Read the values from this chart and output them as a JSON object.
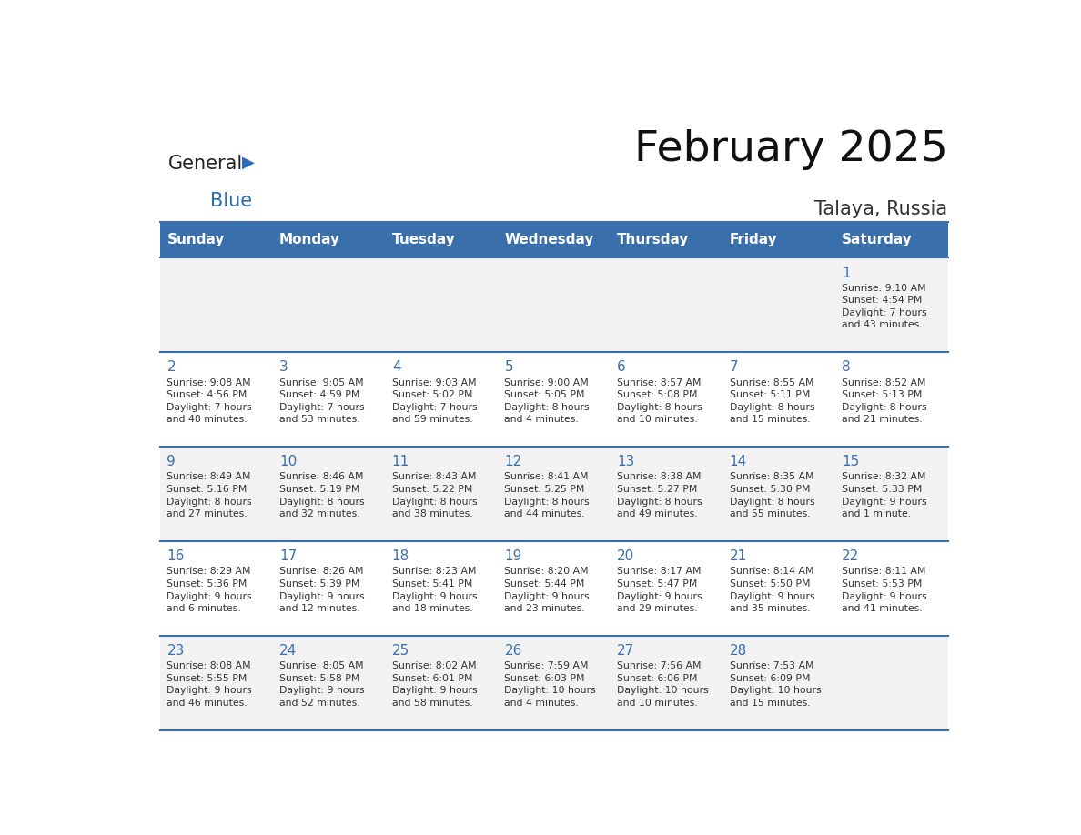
{
  "title": "February 2025",
  "subtitle": "Talaya, Russia",
  "header_bg": "#3a6fad",
  "header_text_color": "#ffffff",
  "cell_bg_odd": "#f2f2f2",
  "cell_bg_even": "#ffffff",
  "day_number_color": "#3a6fad",
  "text_color": "#333333",
  "line_color": "#3a6fad",
  "days_of_week": [
    "Sunday",
    "Monday",
    "Tuesday",
    "Wednesday",
    "Thursday",
    "Friday",
    "Saturday"
  ],
  "weeks": [
    [
      {
        "day": null,
        "info": null
      },
      {
        "day": null,
        "info": null
      },
      {
        "day": null,
        "info": null
      },
      {
        "day": null,
        "info": null
      },
      {
        "day": null,
        "info": null
      },
      {
        "day": null,
        "info": null
      },
      {
        "day": 1,
        "info": "Sunrise: 9:10 AM\nSunset: 4:54 PM\nDaylight: 7 hours\nand 43 minutes."
      }
    ],
    [
      {
        "day": 2,
        "info": "Sunrise: 9:08 AM\nSunset: 4:56 PM\nDaylight: 7 hours\nand 48 minutes."
      },
      {
        "day": 3,
        "info": "Sunrise: 9:05 AM\nSunset: 4:59 PM\nDaylight: 7 hours\nand 53 minutes."
      },
      {
        "day": 4,
        "info": "Sunrise: 9:03 AM\nSunset: 5:02 PM\nDaylight: 7 hours\nand 59 minutes."
      },
      {
        "day": 5,
        "info": "Sunrise: 9:00 AM\nSunset: 5:05 PM\nDaylight: 8 hours\nand 4 minutes."
      },
      {
        "day": 6,
        "info": "Sunrise: 8:57 AM\nSunset: 5:08 PM\nDaylight: 8 hours\nand 10 minutes."
      },
      {
        "day": 7,
        "info": "Sunrise: 8:55 AM\nSunset: 5:11 PM\nDaylight: 8 hours\nand 15 minutes."
      },
      {
        "day": 8,
        "info": "Sunrise: 8:52 AM\nSunset: 5:13 PM\nDaylight: 8 hours\nand 21 minutes."
      }
    ],
    [
      {
        "day": 9,
        "info": "Sunrise: 8:49 AM\nSunset: 5:16 PM\nDaylight: 8 hours\nand 27 minutes."
      },
      {
        "day": 10,
        "info": "Sunrise: 8:46 AM\nSunset: 5:19 PM\nDaylight: 8 hours\nand 32 minutes."
      },
      {
        "day": 11,
        "info": "Sunrise: 8:43 AM\nSunset: 5:22 PM\nDaylight: 8 hours\nand 38 minutes."
      },
      {
        "day": 12,
        "info": "Sunrise: 8:41 AM\nSunset: 5:25 PM\nDaylight: 8 hours\nand 44 minutes."
      },
      {
        "day": 13,
        "info": "Sunrise: 8:38 AM\nSunset: 5:27 PM\nDaylight: 8 hours\nand 49 minutes."
      },
      {
        "day": 14,
        "info": "Sunrise: 8:35 AM\nSunset: 5:30 PM\nDaylight: 8 hours\nand 55 minutes."
      },
      {
        "day": 15,
        "info": "Sunrise: 8:32 AM\nSunset: 5:33 PM\nDaylight: 9 hours\nand 1 minute."
      }
    ],
    [
      {
        "day": 16,
        "info": "Sunrise: 8:29 AM\nSunset: 5:36 PM\nDaylight: 9 hours\nand 6 minutes."
      },
      {
        "day": 17,
        "info": "Sunrise: 8:26 AM\nSunset: 5:39 PM\nDaylight: 9 hours\nand 12 minutes."
      },
      {
        "day": 18,
        "info": "Sunrise: 8:23 AM\nSunset: 5:41 PM\nDaylight: 9 hours\nand 18 minutes."
      },
      {
        "day": 19,
        "info": "Sunrise: 8:20 AM\nSunset: 5:44 PM\nDaylight: 9 hours\nand 23 minutes."
      },
      {
        "day": 20,
        "info": "Sunrise: 8:17 AM\nSunset: 5:47 PM\nDaylight: 9 hours\nand 29 minutes."
      },
      {
        "day": 21,
        "info": "Sunrise: 8:14 AM\nSunset: 5:50 PM\nDaylight: 9 hours\nand 35 minutes."
      },
      {
        "day": 22,
        "info": "Sunrise: 8:11 AM\nSunset: 5:53 PM\nDaylight: 9 hours\nand 41 minutes."
      }
    ],
    [
      {
        "day": 23,
        "info": "Sunrise: 8:08 AM\nSunset: 5:55 PM\nDaylight: 9 hours\nand 46 minutes."
      },
      {
        "day": 24,
        "info": "Sunrise: 8:05 AM\nSunset: 5:58 PM\nDaylight: 9 hours\nand 52 minutes."
      },
      {
        "day": 25,
        "info": "Sunrise: 8:02 AM\nSunset: 6:01 PM\nDaylight: 9 hours\nand 58 minutes."
      },
      {
        "day": 26,
        "info": "Sunrise: 7:59 AM\nSunset: 6:03 PM\nDaylight: 10 hours\nand 4 minutes."
      },
      {
        "day": 27,
        "info": "Sunrise: 7:56 AM\nSunset: 6:06 PM\nDaylight: 10 hours\nand 10 minutes."
      },
      {
        "day": 28,
        "info": "Sunrise: 7:53 AM\nSunset: 6:09 PM\nDaylight: 10 hours\nand 15 minutes."
      },
      {
        "day": null,
        "info": null
      }
    ]
  ]
}
